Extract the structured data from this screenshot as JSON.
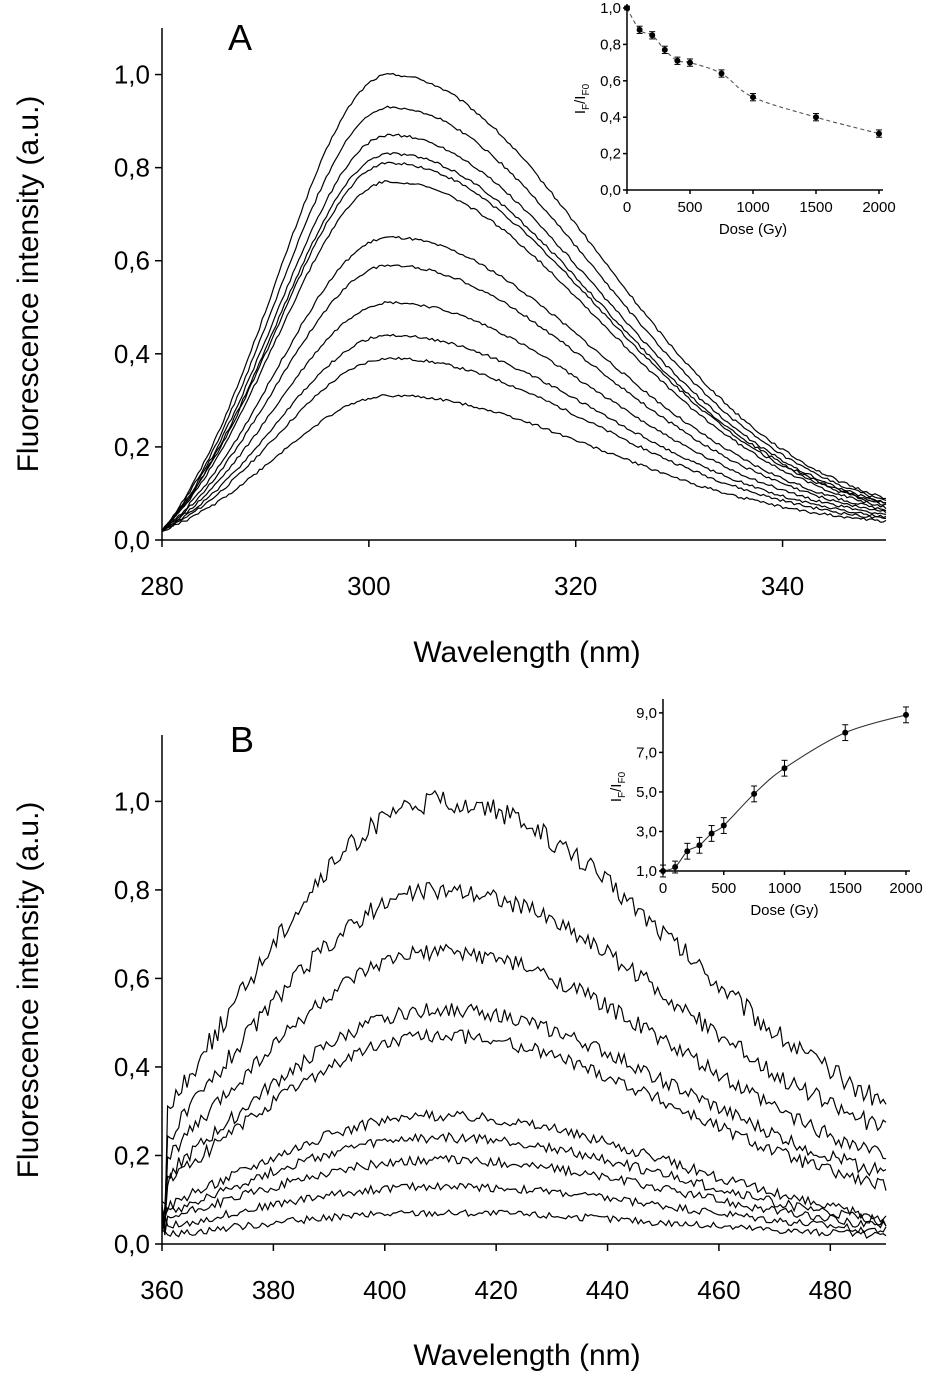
{
  "chart_data": [
    {
      "id": "A",
      "type": "line",
      "panel_label": "A",
      "xlabel": "Wavelength (nm)",
      "ylabel": "Fluorescence intensity (a.u.)",
      "xlim": [
        280,
        350
      ],
      "ylim": [
        0,
        1.1
      ],
      "xticks": [
        "280",
        "300",
        "320",
        "340"
      ],
      "xtick_values": [
        280,
        300,
        320,
        340
      ],
      "yticks": [
        "0,0",
        "0,2",
        "0,4",
        "0,6",
        "0,8",
        "1,0"
      ],
      "ytick_values": [
        0,
        0.2,
        0.4,
        0.6,
        0.8,
        1.0
      ],
      "series_peaks": [
        1.0,
        0.93,
        0.87,
        0.83,
        0.81,
        0.77,
        0.65,
        0.59,
        0.51,
        0.44,
        0.39,
        0.31
      ],
      "peak_wavelength": 302,
      "start_value": 0.02,
      "end_values": [
        0.09,
        0.085,
        0.08,
        0.078,
        0.075,
        0.07,
        0.065,
        0.06,
        0.055,
        0.05,
        0.045,
        0.04
      ],
      "grid": false,
      "inset": {
        "type": "scatter",
        "xlabel": "Dose (Gy)",
        "ylabel_main": "I",
        "ylabel_sub1": "F",
        "ylabel_mid": "/I",
        "ylabel_sub2": "F0",
        "xlim": [
          0,
          2000
        ],
        "ylim": [
          0,
          1.0
        ],
        "xticks": [
          "0",
          "500",
          "1000",
          "1500",
          "2000"
        ],
        "xtick_values": [
          0,
          500,
          1000,
          1500,
          2000
        ],
        "yticks": [
          "0,0",
          "0,2",
          "0,4",
          "0,6",
          "0,8",
          "1,0"
        ],
        "ytick_values": [
          0,
          0.2,
          0.4,
          0.6,
          0.8,
          1.0
        ],
        "x": [
          0,
          100,
          200,
          300,
          400,
          500,
          750,
          1000,
          1500,
          2000
        ],
        "y": [
          1.0,
          0.88,
          0.85,
          0.77,
          0.71,
          0.7,
          0.64,
          0.51,
          0.4,
          0.31
        ],
        "err": [
          0.01,
          0.02,
          0.02,
          0.02,
          0.02,
          0.02,
          0.02,
          0.02,
          0.02,
          0.02
        ],
        "fit_style": "dashed"
      }
    },
    {
      "id": "B",
      "type": "line",
      "panel_label": "B",
      "xlabel": "Wavelength (nm)",
      "ylabel": "Fluorescence intensity (a.u.)",
      "xlim": [
        360,
        490
      ],
      "ylim": [
        0,
        1.15
      ],
      "xticks": [
        "360",
        "380",
        "400",
        "420",
        "440",
        "460",
        "480"
      ],
      "xtick_values": [
        360,
        380,
        400,
        420,
        440,
        460,
        480
      ],
      "yticks": [
        "0,0",
        "0,2",
        "0,4",
        "0,6",
        "0,8",
        "1,0"
      ],
      "ytick_values": [
        0,
        0.2,
        0.4,
        0.6,
        0.8,
        1.0
      ],
      "series_peaks": [
        1.0,
        0.8,
        0.66,
        0.53,
        0.47,
        0.29,
        0.24,
        0.19,
        0.13,
        0.07
      ],
      "peak_wavelength": 410,
      "end_values": [
        0.32,
        0.26,
        0.2,
        0.16,
        0.13,
        0.06,
        0.05,
        0.04,
        0.03,
        0.02
      ],
      "grid": false,
      "inset": {
        "type": "scatter",
        "xlabel": "Dose (Gy)",
        "ylabel_main": "I",
        "ylabel_sub1": "F",
        "ylabel_mid": "/I",
        "ylabel_sub2": "F0",
        "xlim": [
          0,
          2000
        ],
        "ylim": [
          1.0,
          9.5
        ],
        "xticks": [
          "0",
          "500",
          "1000",
          "1500",
          "2000"
        ],
        "xtick_values": [
          0,
          500,
          1000,
          1500,
          2000
        ],
        "yticks": [
          "1,0",
          "3,0",
          "5,0",
          "7,0",
          "9,0"
        ],
        "ytick_values": [
          1,
          3,
          5,
          7,
          9
        ],
        "x": [
          0,
          100,
          200,
          300,
          400,
          500,
          750,
          1000,
          1500,
          2000
        ],
        "y": [
          1.0,
          1.2,
          2.0,
          2.3,
          2.9,
          3.3,
          4.9,
          6.2,
          8.0,
          8.9
        ],
        "err": [
          0.3,
          0.3,
          0.4,
          0.4,
          0.4,
          0.4,
          0.4,
          0.4,
          0.4,
          0.4
        ],
        "fit_style": "solid"
      }
    }
  ]
}
